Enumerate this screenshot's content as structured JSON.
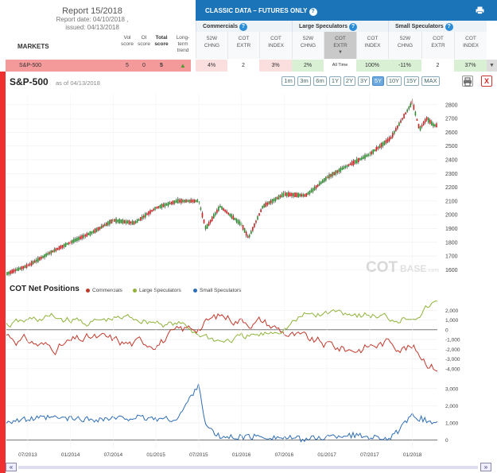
{
  "report": {
    "title": "Report 15/2018",
    "date": "Report date: 04/10/2018 ,",
    "issued": "issued: 04/13/2018"
  },
  "markets_label": "MARKETS",
  "score_headers": [
    {
      "line1": "Vol",
      "line2": "score"
    },
    {
      "line1": "OI",
      "line2": "score"
    },
    {
      "line1": "Total",
      "line2": "score"
    },
    {
      "line1": "Long-",
      "line2": "term",
      "line3": "trend"
    }
  ],
  "classic": {
    "title": "CLASSIC DATA – FUTURES ONLY",
    "help": "?"
  },
  "groups": [
    {
      "name": "Commercials",
      "cols": [
        {
          "l1": "52W",
          "l2": "CHNG"
        },
        {
          "l1": "COT",
          "l2": "EXTR"
        },
        {
          "l1": "COT",
          "l2": "INDEX"
        }
      ]
    },
    {
      "name": "Large Speculators",
      "cols": [
        {
          "l1": "52W",
          "l2": "CHNG"
        },
        {
          "l1": "COT",
          "l2": "EXTR"
        },
        {
          "l1": "COT",
          "l2": "INDEX"
        }
      ]
    },
    {
      "name": "Small Speculators",
      "cols": [
        {
          "l1": "52W",
          "l2": "CHNG"
        },
        {
          "l1": "COT",
          "l2": "EXTR"
        },
        {
          "l1": "COT",
          "l2": "INDEX"
        }
      ]
    }
  ],
  "row": {
    "market": "S&P-500",
    "vol": "5",
    "oi": "0",
    "total": "5",
    "com_chng": "4%",
    "com_extr": "2",
    "com_index": "3%",
    "ls_chng": "2%",
    "ls_extr": "All Time",
    "ls_index": "100%",
    "ss_chng": "-11%",
    "ss_extr": "2",
    "ss_index": "37%"
  },
  "chart": {
    "title": "S&P-500",
    "asof": "as of 04/13/2018",
    "ranges": [
      "1m",
      "3m",
      "6m",
      "1Y",
      "2Y",
      "3Y",
      "5Y",
      "10Y",
      "15Y",
      "MAX"
    ],
    "active_range": "5Y",
    "close_label": "X",
    "watermark_cot": "COT",
    "watermark_base": "BASE",
    "watermark_com": ".com",
    "cotnet_title": "COT Net Positions",
    "legend": [
      {
        "name": "Commercials",
        "color": "#c0392b"
      },
      {
        "name": "Large Speculators",
        "color": "#8fb33a"
      },
      {
        "name": "Small Speculators",
        "color": "#2e6db4"
      }
    ],
    "scroll_left": "«",
    "scroll_right": "»"
  },
  "chart_data": [
    {
      "type": "line",
      "title": "S&P-500",
      "y_ticks": [
        "2800",
        "2700",
        "2600",
        "2500",
        "2400",
        "2300",
        "2200",
        "2100",
        "2000",
        "1900",
        "1800",
        "1700",
        "1600"
      ],
      "ylim": [
        1550,
        2880
      ],
      "x": [
        "2013-04",
        "2013-07",
        "2013-10",
        "2014-01",
        "2014-04",
        "2014-07",
        "2014-10",
        "2015-01",
        "2015-04",
        "2015-07",
        "2015-08",
        "2015-10",
        "2016-01",
        "2016-02",
        "2016-04",
        "2016-07",
        "2016-10",
        "2016-11",
        "2017-01",
        "2017-04",
        "2017-07",
        "2017-10",
        "2018-01",
        "2018-02",
        "2018-03",
        "2018-04"
      ],
      "values": [
        1570,
        1630,
        1720,
        1800,
        1870,
        1960,
        1940,
        2050,
        2100,
        2100,
        1900,
        2060,
        1930,
        1830,
        2060,
        2150,
        2140,
        2180,
        2270,
        2360,
        2440,
        2560,
        2820,
        2620,
        2700,
        2650
      ]
    },
    {
      "type": "line",
      "title": "COT Net Positions",
      "y_ticks": [
        "2,000",
        "1,000",
        "0",
        "-1,000",
        "-2,000",
        "-3,000",
        "-4,000"
      ],
      "ylim": [
        -4500,
        3000
      ],
      "x": [
        "2013-04",
        "2013-10",
        "2014-04",
        "2014-10",
        "2015-04",
        "2015-10",
        "2016-04",
        "2016-10",
        "2017-04",
        "2017-10",
        "2018-01",
        "2018-04"
      ],
      "series": [
        {
          "name": "Commercials",
          "values": [
            -500,
            -1800,
            -900,
            -1500,
            -500,
            1400,
            900,
            -1200,
            -2000,
            -1200,
            -1800,
            -3600
          ]
        },
        {
          "name": "Large Speculators",
          "values": [
            400,
            1200,
            700,
            1200,
            500,
            -1200,
            -700,
            1400,
            1900,
            1100,
            1600,
            2600
          ]
        }
      ]
    },
    {
      "type": "line",
      "title": "",
      "y_ticks": [
        "3,000",
        "2,000",
        "1,000",
        "0"
      ],
      "ylim": [
        -300,
        3500
      ],
      "x": [
        "2013-04",
        "2013-10",
        "2014-04",
        "2014-10",
        "2015-04",
        "2015-07",
        "2015-08",
        "2015-10",
        "2016-04",
        "2016-10",
        "2017-04",
        "2017-10",
        "2018-01",
        "2018-04"
      ],
      "series": [
        {
          "name": "Small Speculators",
          "values": [
            1100,
            1300,
            1200,
            1300,
            1200,
            3300,
            800,
            150,
            200,
            50,
            300,
            100,
            1400,
            1000
          ]
        }
      ]
    }
  ],
  "x_ticks": [
    "07/2013",
    "01/2014",
    "07/2014",
    "01/2015",
    "07/2015",
    "01/2016",
    "07/2016",
    "01/2017",
    "07/2017",
    "01/2018"
  ]
}
